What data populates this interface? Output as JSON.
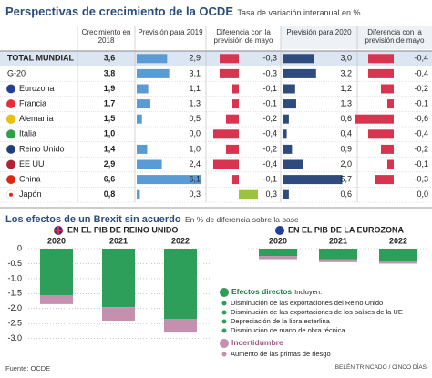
{
  "title": "Perspectivas de crecimiento de la OCDE",
  "subtitle": "Tasa de variación interanual en %",
  "table": {
    "columns": [
      "Crecimiento en 2018",
      "Previsión para 2019",
      "Diferencia con la previsión de mayo",
      "Previsión para 2020",
      "Diferencia con la previsión de mayo"
    ],
    "rows": [
      "TOTAL MUNDIAL",
      "G-20",
      "Eurozona",
      "Francia",
      "Alemania",
      "Italia",
      "Reino Unido",
      "EE UU",
      "China",
      "Japón"
    ],
    "growth_2018": {
      "values": [
        3.6,
        3.8,
        1.9,
        1.7,
        1.5,
        1.0,
        1.4,
        2.9,
        6.6,
        0.8
      ],
      "value_labels": [
        "3,6",
        "3,8",
        "1,9",
        "1,7",
        "1,5",
        "1,0",
        "1,4",
        "2,9",
        "6,6",
        "0,8"
      ]
    },
    "forecast_2019": {
      "color": "#5b9bd5",
      "values": [
        2.9,
        3.1,
        1.1,
        1.3,
        0.5,
        0.0,
        1.0,
        2.4,
        6.1,
        0.3
      ],
      "value_labels": [
        "2,9",
        "3,1",
        "1,1",
        "1,3",
        "0,5",
        "0,0",
        "1,0",
        "2,4",
        "6,1",
        "0,3"
      ]
    },
    "diff_2019": {
      "negative_color": "#d9344f",
      "positive_color": "#9cc33b",
      "values": [
        -0.3,
        -0.3,
        -0.1,
        -0.1,
        -0.2,
        -0.4,
        -0.2,
        -0.4,
        -0.1,
        0.3
      ],
      "value_labels": [
        "-0,3",
        "-0,3",
        "-0,1",
        "-0,1",
        "-0,2",
        "-0,4",
        "-0,2",
        "-0,4",
        "-0,1",
        "0,3"
      ]
    },
    "forecast_2020": {
      "color": "#2f4a7c",
      "values": [
        3.0,
        3.2,
        1.2,
        1.3,
        0.6,
        0.4,
        0.9,
        2.0,
        5.7,
        0.6
      ],
      "value_labels": [
        "3,0",
        "3,2",
        "1,2",
        "1,3",
        "0,6",
        "0,4",
        "0,9",
        "2,0",
        "5,7",
        "0,6"
      ]
    },
    "diff_2020": {
      "negative_color": "#d9344f",
      "positive_color": "#9cc33b",
      "values": [
        -0.4,
        -0.4,
        -0.2,
        -0.1,
        -0.6,
        -0.4,
        -0.2,
        -0.1,
        -0.3,
        0.0
      ],
      "value_labels": [
        "-0,4",
        "-0,4",
        "-0,2",
        "-0,1",
        "-0,6",
        "-0,4",
        "-0,2",
        "-0,1",
        "-0,3",
        "0,0"
      ]
    }
  },
  "brexit": {
    "title": "Los efectos de un Brexit sin acuerdo",
    "subtitle": "En % de diferencia sobre la base"
  },
  "chart_data": [
    {
      "type": "bar",
      "stacked": true,
      "title": "EN EL PIB DE REINO UNIDO",
      "categories": [
        "2020",
        "2021",
        "2022"
      ],
      "series": [
        {
          "name": "Efectos directos",
          "color": "#2e9e5b",
          "values": [
            -1.55,
            -1.95,
            -2.35
          ]
        },
        {
          "name": "Incertidumbre",
          "color": "#c58fae",
          "values": [
            -0.3,
            -0.45,
            -0.45
          ]
        }
      ],
      "ylim": [
        -3.1,
        0
      ],
      "yticks": [
        0,
        -0.5,
        {
          "value": -1,
          "label": "-1.0"
        },
        -1.5,
        {
          "value": -2,
          "label": "-2.0"
        },
        -2.5,
        {
          "value": -3,
          "label": "-3.0"
        }
      ],
      "grid": true
    },
    {
      "type": "bar",
      "stacked": true,
      "title": "EN EL PIB DE LA EUROZONA",
      "categories": [
        "2020",
        "2021",
        "2022"
      ],
      "series": [
        {
          "color": "#2e9e5b",
          "values": [
            -0.25,
            -0.35,
            -0.4
          ]
        },
        {
          "color": "#c58fae",
          "values": [
            -0.1,
            -0.1,
            -0.1
          ]
        }
      ],
      "ylim": [
        -3.1,
        0
      ]
    }
  ],
  "legend": {
    "direct_intro": "Incluyen:",
    "direct_items": [
      "Disminución de las exportaciones del Reino Unido",
      "Disminución de las exportaciones de los países de la UE",
      "Depreciación de la libra esterlina",
      "Disminución de mano de obra técnica"
    ],
    "uncertainty_items": [
      "Aumento de las primas de riesgo"
    ]
  },
  "source": "Fuente: OCDE",
  "credit": "BELÉN TRINCADO / CINCO DÍAS"
}
